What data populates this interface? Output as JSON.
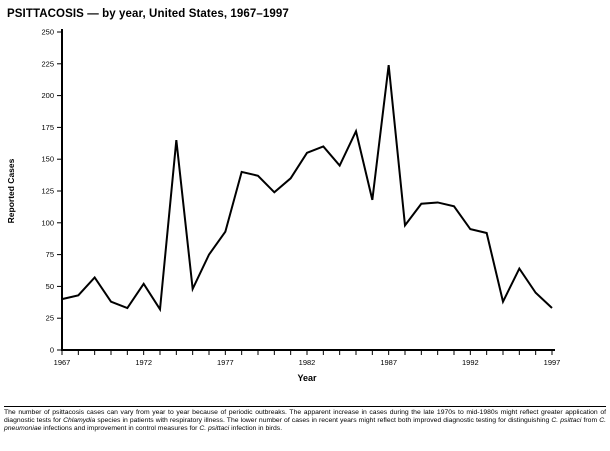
{
  "page": {
    "title": "PSITTACOSIS — by year, United States, 1967–1997"
  },
  "chart_data": {
    "type": "line",
    "title": "PSITTACOSIS — by year, United States, 1967–1997",
    "xlabel": "Year",
    "ylabel": "Reported Cases",
    "x": [
      1967,
      1968,
      1969,
      1970,
      1971,
      1972,
      1973,
      1974,
      1975,
      1976,
      1977,
      1978,
      1979,
      1980,
      1981,
      1982,
      1983,
      1984,
      1985,
      1986,
      1987,
      1988,
      1989,
      1990,
      1991,
      1992,
      1993,
      1994,
      1995,
      1996,
      1997
    ],
    "values": [
      40,
      43,
      57,
      38,
      33,
      52,
      32,
      165,
      48,
      75,
      93,
      140,
      137,
      124,
      135,
      155,
      160,
      145,
      172,
      118,
      224,
      98,
      115,
      116,
      113,
      95,
      92,
      38,
      64,
      45,
      33
    ],
    "ylim": [
      0,
      250
    ],
    "yticks": [
      0,
      25,
      50,
      75,
      100,
      125,
      150,
      175,
      200,
      225,
      250
    ],
    "xticks_labeled": [
      1967,
      1972,
      1977,
      1982,
      1987,
      1992,
      1997
    ],
    "line_color": "#000000",
    "grid": false,
    "legend": "none"
  },
  "footnote": {
    "segments": [
      {
        "text": "The number of psittacosis cases can vary from year to year because of periodic outbreaks. The apparent increase in cases during the late 1970s to mid-1980s might reflect greater application of diagnostic tests for ",
        "italic": false
      },
      {
        "text": "Chlamydia",
        "italic": true
      },
      {
        "text": " species in patients with respiratory illness. The lower number of cases in recent years might reflect both improved diagnostic testing for distinguishing ",
        "italic": false
      },
      {
        "text": "C. psittaci",
        "italic": true
      },
      {
        "text": " from ",
        "italic": false
      },
      {
        "text": "C. pneumoniae",
        "italic": true
      },
      {
        "text": " infections and improvement in control measures for ",
        "italic": false
      },
      {
        "text": "C. psittaci",
        "italic": true
      },
      {
        "text": " infection in birds.",
        "italic": false
      }
    ]
  }
}
